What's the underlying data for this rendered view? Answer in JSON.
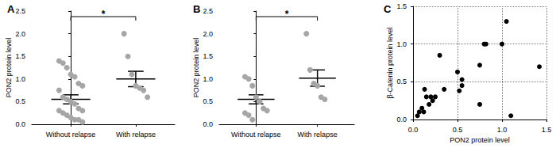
{
  "chart_data": [
    {
      "type": "strip",
      "title": "A",
      "categories": [
        "Without relapse",
        "With relapse"
      ],
      "values": [
        [
          1.4,
          1.35,
          1.25,
          1.1,
          1.05,
          0.9,
          0.85,
          0.75,
          0.6,
          0.55,
          0.5,
          0.45,
          0.35,
          0.3,
          0.3,
          0.25,
          0.2,
          0.15,
          0.1,
          0.1,
          0.05
        ],
        [
          2.0,
          1.5,
          1.1,
          0.85,
          0.8,
          0.75,
          0.6
        ]
      ],
      "means": [
        0.55,
        1.0
      ],
      "sem": [
        0.1,
        0.17
      ],
      "color": "#a6a6a6",
      "marker": "circle",
      "ylabel": "PON2 protein level",
      "ylim": [
        0,
        2.5
      ],
      "yticks": [
        {
          "value": 0,
          "label": "0.0"
        },
        0.5,
        {
          "value": 1,
          "label": "1.0"
        },
        1.5,
        {
          "value": 2,
          "label": "2.0"
        },
        2.5
      ],
      "grid": false,
      "annotations": [
        {
          "text": "*",
          "from": "Without relapse",
          "to": "With relapse"
        }
      ]
    },
    {
      "type": "strip",
      "title": "B",
      "categories": [
        "Without relapse",
        "With relapse"
      ],
      "values": [
        [
          1.05,
          1.0,
          0.85,
          0.6,
          0.5,
          0.35,
          0.3,
          0.25,
          0.2,
          0.1
        ],
        [
          2.0,
          1.2,
          0.9,
          0.85,
          0.6,
          0.55
        ]
      ],
      "means": [
        0.55,
        1.02
      ],
      "sem": [
        0.1,
        0.18
      ],
      "color": "#a6a6a6",
      "marker": "circle",
      "ylabel": "PON2 protein level",
      "ylim": [
        0,
        2.5
      ],
      "yticks": [
        {
          "value": 0,
          "label": "0.0"
        },
        0.5,
        {
          "value": 1,
          "label": "1.0"
        },
        1.5,
        {
          "value": 2,
          "label": "2.0"
        },
        2.5
      ],
      "grid": false,
      "annotations": [
        {
          "text": "*",
          "from": "Without relapse",
          "to": "With relapse"
        }
      ]
    },
    {
      "type": "scatter",
      "title": "C",
      "x": [
        0.05,
        0.07,
        0.1,
        0.12,
        0.13,
        0.15,
        0.18,
        0.2,
        0.22,
        0.25,
        0.3,
        0.35,
        0.5,
        0.52,
        0.55,
        0.55,
        0.75,
        0.75,
        0.8,
        0.82,
        1.0,
        1.05,
        1.1,
        1.42
      ],
      "values": [
        0.05,
        0.1,
        0.15,
        0.1,
        0.4,
        0.3,
        0.2,
        0.3,
        0.25,
        0.3,
        0.85,
        0.4,
        0.63,
        0.38,
        0.45,
        0.53,
        0.72,
        0.2,
        1.0,
        1.0,
        1.0,
        1.3,
        0.05,
        0.7
      ],
      "color": "#000000",
      "marker": "circle",
      "xlabel": "PON2 protein level",
      "ylabel": "β-Catenin protein level",
      "xlim": [
        0,
        1.5
      ],
      "xticks": [
        {
          "value": 0,
          "label": "0.0"
        },
        0.5,
        {
          "value": 1,
          "label": "1.0"
        },
        1.5
      ],
      "ylim": [
        0,
        1.5
      ],
      "yticks": [
        {
          "value": 0,
          "label": "0.0"
        },
        0.5,
        {
          "value": 1,
          "label": "1.0"
        },
        1.5
      ],
      "grid": true
    }
  ]
}
